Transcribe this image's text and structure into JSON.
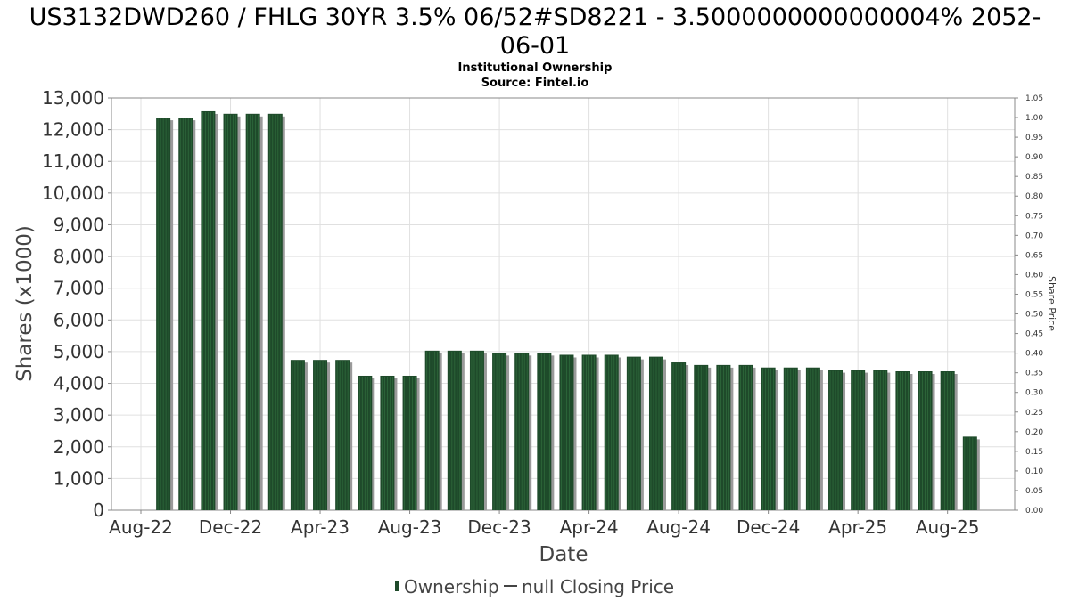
{
  "title": "US3132DWD260 / FHLG 30YR 3.5% 06/52#SD8221 - 3.5000000000000004% 2052-06-01",
  "title_lines": [
    "US3132DWD260 / FHLG 30YR 3.5% 06/52#SD8221 - 3.5000000000000004% 2052-",
    "06-01"
  ],
  "subtitle": "Institutional Ownership",
  "source": "Source: Fintel.io",
  "colors": {
    "bar": "#1e4a2a",
    "bar_stripe": "#2f6a3c",
    "shadow": "#9a9a9a",
    "grid": "#e0e0e0",
    "frame": "#888888"
  },
  "chart_data": {
    "type": "bar",
    "xlabel": "Date",
    "ylabel": "Shares (x1000)",
    "y2label": "Share Price",
    "ylim": [
      0,
      13000
    ],
    "y2lim": [
      0,
      1.05
    ],
    "yticks": [
      "0",
      "1,000",
      "2,000",
      "3,000",
      "4,000",
      "5,000",
      "6,000",
      "7,000",
      "8,000",
      "9,000",
      "10,000",
      "11,000",
      "12,000",
      "13,000"
    ],
    "y2ticks": [
      "0.00",
      "0.05",
      "0.10",
      "0.15",
      "0.20",
      "0.25",
      "0.30",
      "0.35",
      "0.40",
      "0.45",
      "0.50",
      "0.55",
      "0.60",
      "0.65",
      "0.70",
      "0.75",
      "0.80",
      "0.85",
      "0.90",
      "0.95",
      "1.00",
      "1.05"
    ],
    "x_tick_labels": [
      "Aug-22",
      "Dec-22",
      "Apr-23",
      "Aug-23",
      "Dec-23",
      "Apr-24",
      "Aug-24",
      "Dec-24",
      "Apr-25",
      "Aug-25"
    ],
    "grid": true,
    "legend_position": "bottom",
    "series": [
      {
        "name": "Ownership",
        "values": [
          12380,
          12380,
          12580,
          12500,
          12500,
          12500,
          4740,
          4740,
          4740,
          4240,
          4240,
          4240,
          5030,
          5030,
          5030,
          4960,
          4960,
          4960,
          4900,
          4900,
          4900,
          4840,
          4840,
          4660,
          4580,
          4580,
          4580,
          4500,
          4500,
          4500,
          4420,
          4420,
          4420,
          4380,
          4380,
          4380,
          2320
        ]
      }
    ],
    "legend": [
      "Ownership",
      "null Closing Price"
    ]
  }
}
